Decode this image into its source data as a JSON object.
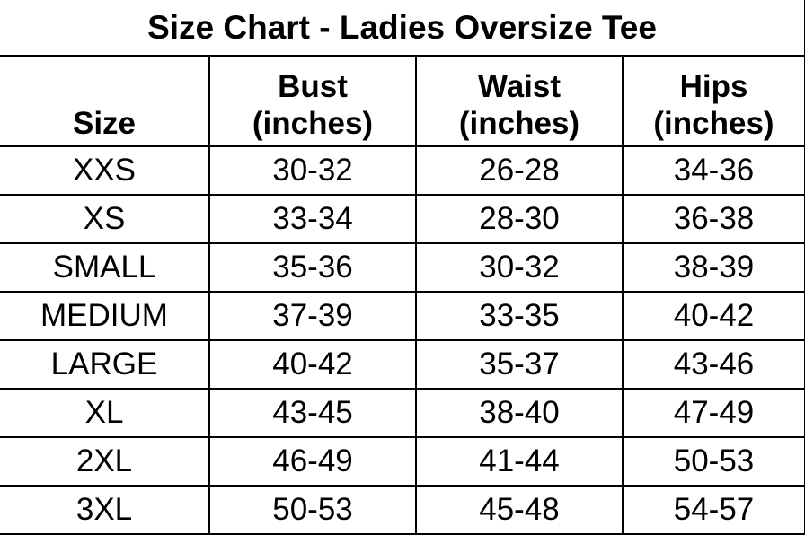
{
  "title": "Size Chart - Ladies Oversize Tee",
  "headers": [
    {
      "line1": "",
      "line2": "Size"
    },
    {
      "line1": "Bust",
      "line2": "(inches)"
    },
    {
      "line1": "Waist",
      "line2": "(inches)"
    },
    {
      "line1": "Hips",
      "line2": "(inches)"
    }
  ],
  "rows": [
    [
      "XXS",
      "30-32",
      "26-28",
      "34-36"
    ],
    [
      "XS",
      "33-34",
      "28-30",
      "36-38"
    ],
    [
      "SMALL",
      "35-36",
      "30-32",
      "38-39"
    ],
    [
      "MEDIUM",
      "37-39",
      "33-35",
      "40-42"
    ],
    [
      "LARGE",
      "40-42",
      "35-37",
      "43-46"
    ],
    [
      "XL",
      "43-45",
      "38-40",
      "47-49"
    ],
    [
      "2XL",
      "46-49",
      "41-44",
      "50-53"
    ],
    [
      "3XL",
      "50-53",
      "45-48",
      "54-57"
    ]
  ]
}
